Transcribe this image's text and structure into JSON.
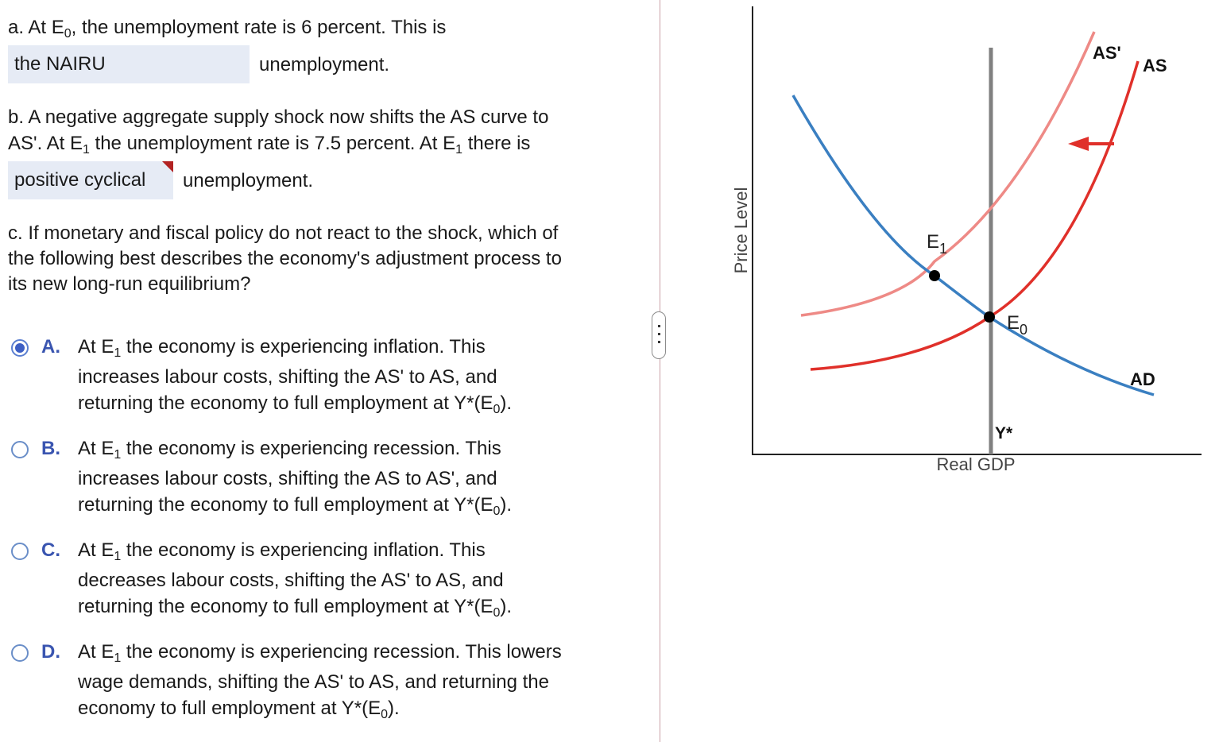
{
  "part_a": {
    "line1_pre": "a. At E",
    "line1_sub": "0",
    "line1_post": ", the unemployment rate is 6 percent. This is",
    "dropdown_value": "the NAIRU",
    "line2_post": "unemployment."
  },
  "part_b": {
    "line1": "b. A negative aggregate supply shock now shifts the AS curve to",
    "line2_pre": "AS'. At E",
    "line2_sub": "1",
    "line2_mid": " the unemployment rate is 7.5 percent. At E",
    "line2_sub2": "1",
    "line2_post": " there is",
    "dropdown_value": "positive cyclical",
    "line3_post": "unemployment."
  },
  "part_c": {
    "line1": "c. If monetary and fiscal policy do not react to the shock, which of",
    "line2": "the following best describes the economy's adjustment process to",
    "line3": "its new long-run equilibrium?"
  },
  "options": [
    {
      "letter": "A.",
      "selected": true,
      "l1_pre": "At E",
      "l1_sub": "1",
      "l1_post": " the economy is experiencing inflation. This",
      "l2": "increases labour costs, shifting the AS' to AS, and",
      "l3_pre": "returning the economy to full employment at Y*(E",
      "l3_sub": "0",
      "l3_post": ")."
    },
    {
      "letter": "B.",
      "selected": false,
      "l1_pre": "At E",
      "l1_sub": "1",
      "l1_post": " the economy is experiencing recession. This",
      "l2": "increases labour costs, shifting the AS to AS', and",
      "l3_pre": "returning the economy to full employment at Y*(E",
      "l3_sub": "0",
      "l3_post": ")."
    },
    {
      "letter": "C.",
      "selected": false,
      "l1_pre": "At E",
      "l1_sub": "1",
      "l1_post": " the economy is experiencing inflation. This",
      "l2": "decreases labour costs, shifting the AS' to AS, and",
      "l3_pre": "returning the economy to full employment at Y*(E",
      "l3_sub": "0",
      "l3_post": ")."
    },
    {
      "letter": "D.",
      "selected": false,
      "l1_pre": "At E",
      "l1_sub": "1",
      "l1_post": " the economy is experiencing recession. This lowers",
      "l2": "wage demands, shifting the AS' to AS, and returning the",
      "l3_pre": "economy to full employment at Y*(E",
      "l3_sub": "0",
      "l3_post": ")."
    }
  ],
  "graph": {
    "y_axis_label": "Price Level",
    "x_axis_label": "Real GDP",
    "curves": {
      "as_prime": "AS'",
      "as": "AS",
      "ad": "AD",
      "lras": "Y*"
    },
    "points": {
      "e1_main": "E",
      "e1_sub": "1",
      "e0_main": "E",
      "e0_sub": "0"
    },
    "colors": {
      "ad": "#3a7fc1",
      "as": "#e0302a",
      "as_prime": "#ee8a86",
      "lras": "#808080",
      "arrow": "#e0302a"
    }
  }
}
